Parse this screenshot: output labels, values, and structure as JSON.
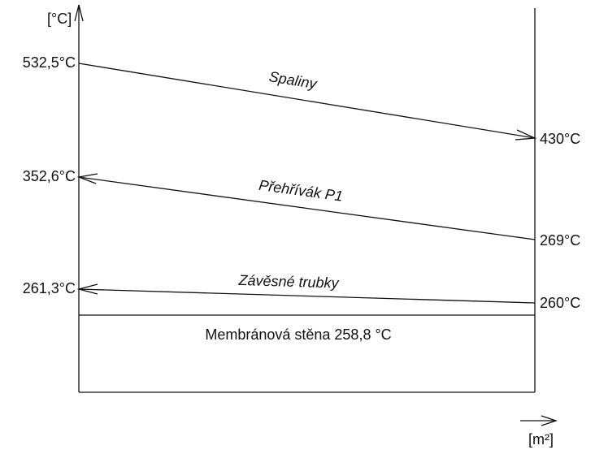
{
  "axes": {
    "y_unit": "[°C]",
    "x_unit": "[m²]"
  },
  "streams": [
    {
      "name": "Spaliny",
      "start": "532,5°C",
      "end": "430°C"
    },
    {
      "name": "Přehřívák P1",
      "start": "352,6°C",
      "end": "269°C"
    },
    {
      "name": "Závěsné trubky",
      "start": "261,3°C",
      "end": "260°C"
    }
  ],
  "wall": "Membránová stěna 258,8 °C"
}
